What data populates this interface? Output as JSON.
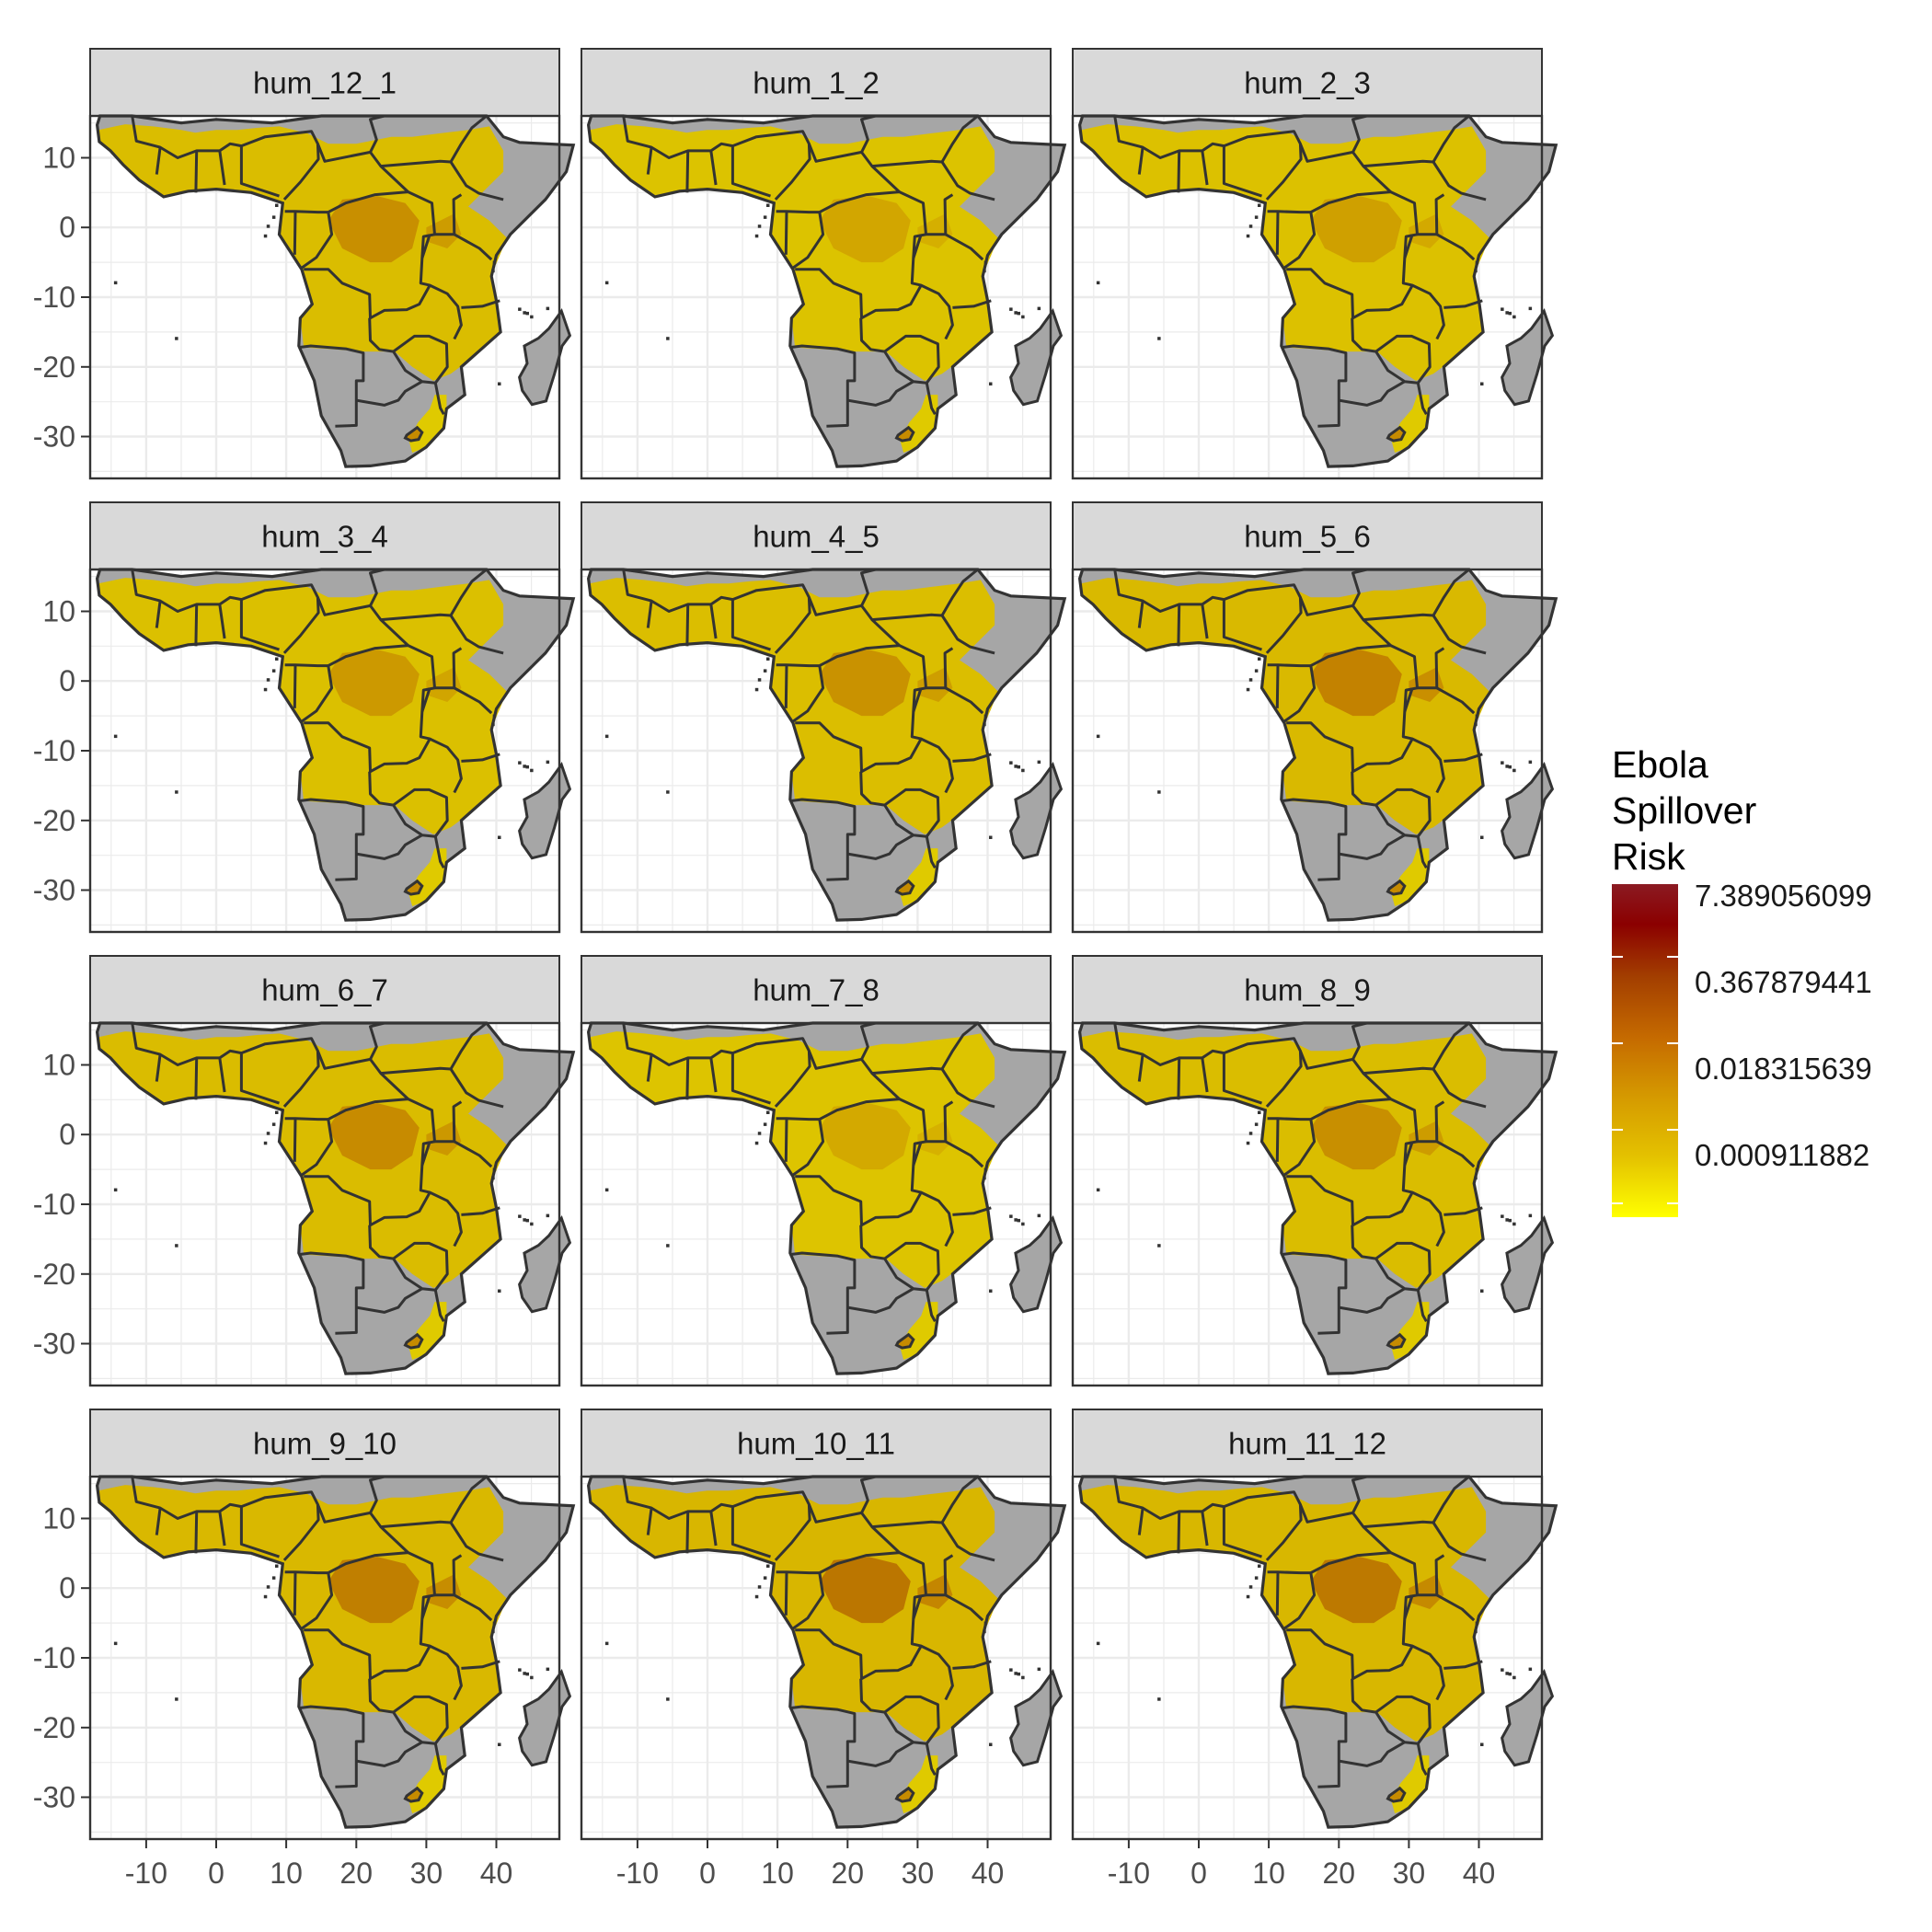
{
  "panels": [
    {
      "label": "hum_12_1",
      "intensity": 0.62
    },
    {
      "label": "hum_1_2",
      "intensity": 0.48
    },
    {
      "label": "hum_2_3",
      "intensity": 0.52
    },
    {
      "label": "hum_3_4",
      "intensity": 0.56
    },
    {
      "label": "hum_4_5",
      "intensity": 0.6
    },
    {
      "label": "hum_5_6",
      "intensity": 0.7
    },
    {
      "label": "hum_6_7",
      "intensity": 0.64
    },
    {
      "label": "hum_7_8",
      "intensity": 0.46
    },
    {
      "label": "hum_8_9",
      "intensity": 0.62
    },
    {
      "label": "hum_9_10",
      "intensity": 0.72
    },
    {
      "label": "hum_10_11",
      "intensity": 0.76
    },
    {
      "label": "hum_11_12",
      "intensity": 0.74
    }
  ],
  "axes": {
    "x_ticks": [
      "-10",
      "0",
      "10",
      "20",
      "30",
      "40"
    ],
    "y_ticks": [
      "10",
      "0",
      "-10",
      "-20",
      "-30"
    ],
    "xlim": [
      -18,
      49
    ],
    "ylim": [
      -36,
      16
    ]
  },
  "legend": {
    "title_lines": [
      "Ebola",
      "Spillover",
      "Risk"
    ],
    "labels": [
      "7.389056099",
      "0.367879441",
      "0.018315639",
      "0.000911882"
    ],
    "colors": {
      "high": "#8b1a22",
      "mid_high": "#a33f00",
      "mid": "#c56a00",
      "low": "#e4c200",
      "min": "#ffff00",
      "no_data": "#a6a6a6",
      "border": "#333333",
      "strip": "#d9d9d9"
    }
  }
}
